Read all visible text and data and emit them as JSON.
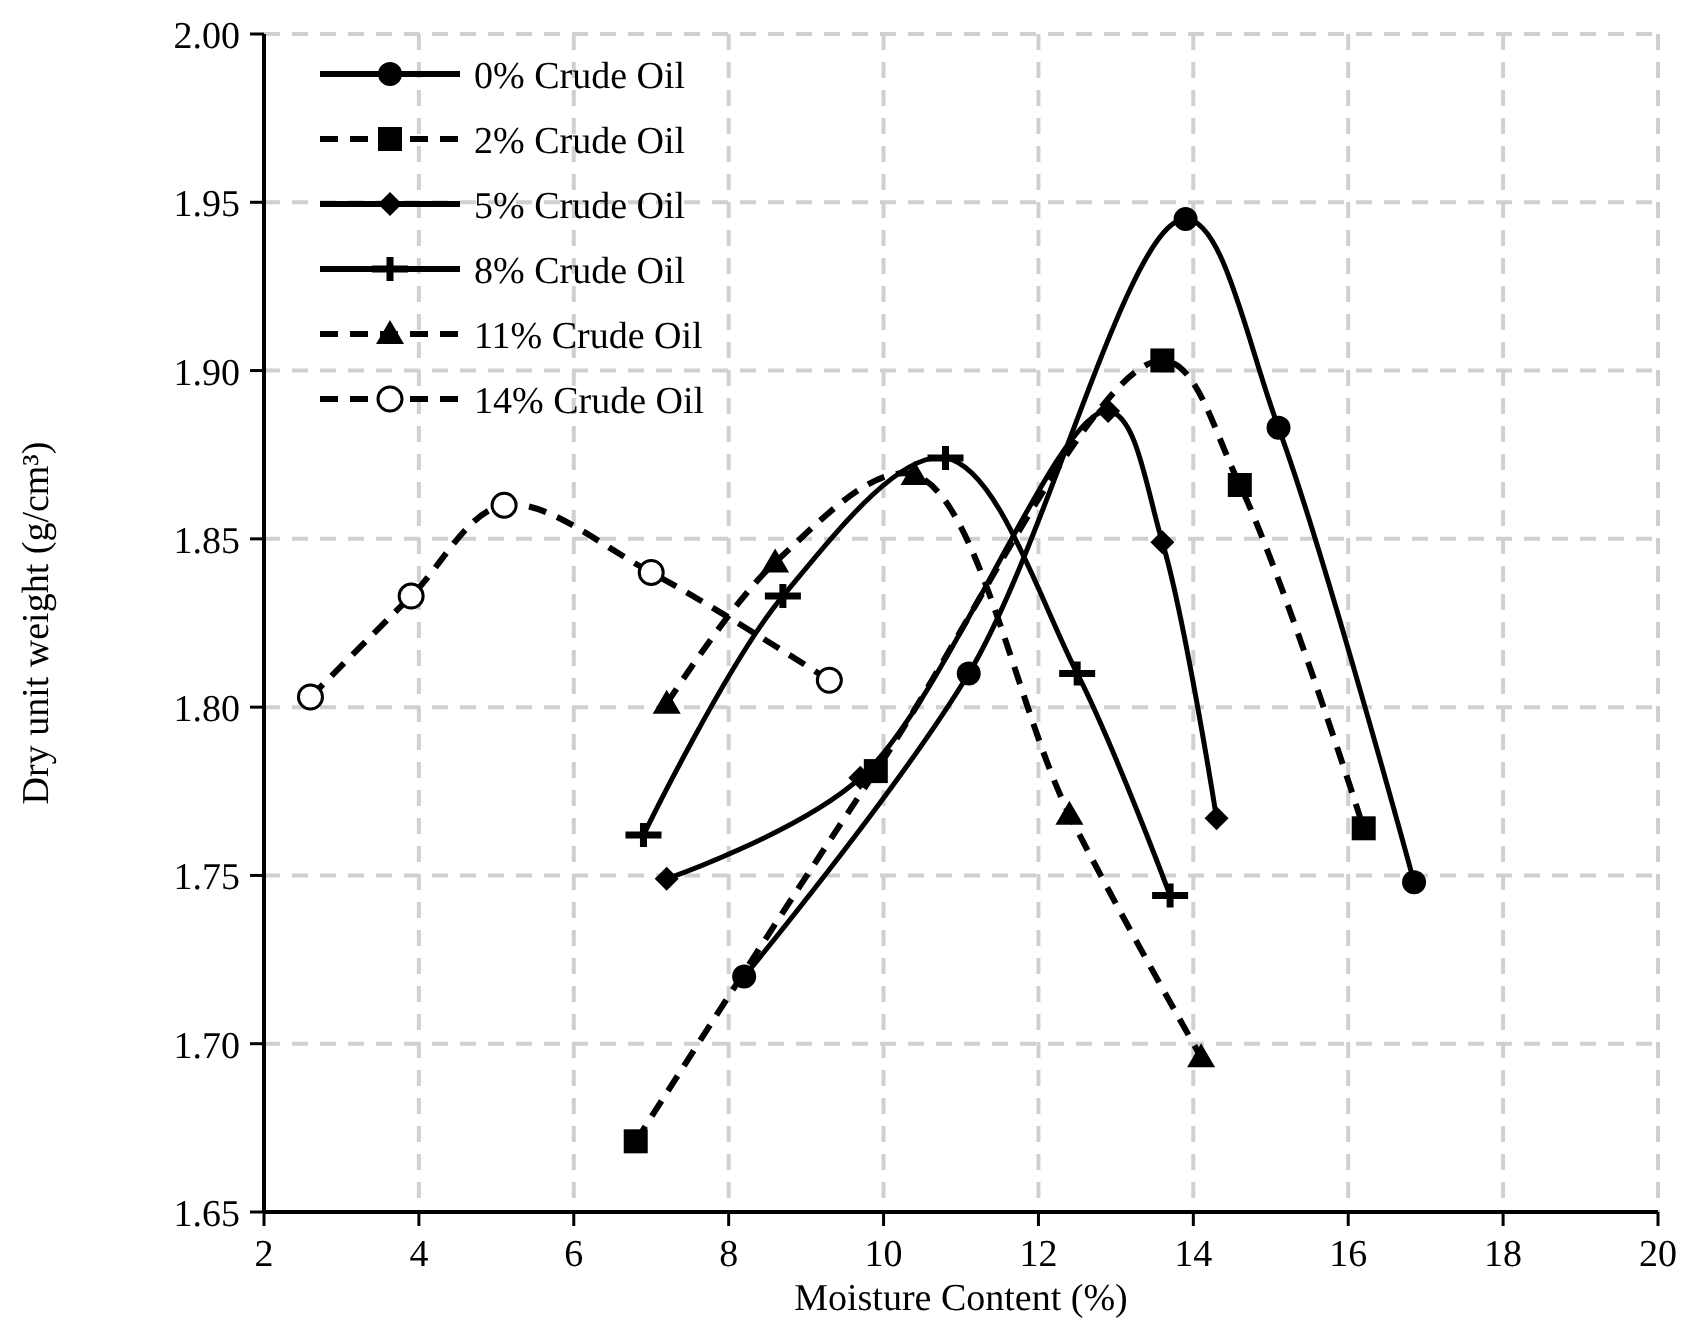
{
  "chart_data": {
    "type": "line",
    "xlabel": "Moisture Content (%)",
    "ylabel": "Dry unit weight (g/cm³)",
    "xlim": [
      2,
      20
    ],
    "xticks": [
      2,
      4,
      6,
      8,
      10,
      12,
      14,
      16,
      18,
      20
    ],
    "ylim": [
      1.65,
      2.0
    ],
    "yticks": [
      {
        "value": 1.65,
        "label": "1.65"
      },
      {
        "value": 1.7,
        "label": "1.70"
      },
      {
        "value": 1.75,
        "label": "1.75"
      },
      {
        "value": 1.8,
        "label": "1.80"
      },
      {
        "value": 1.85,
        "label": "1.85"
      },
      {
        "value": 1.9,
        "label": "1.90"
      },
      {
        "value": 1.95,
        "label": "1.95"
      },
      {
        "value": 2.0,
        "label": "2.00"
      }
    ],
    "grid": true,
    "legend": "top left",
    "series": [
      {
        "name": "0% Crude Oil",
        "color": "#000000",
        "marker": "circle",
        "line_style": "solid",
        "x": [
          8.2,
          11.1,
          13.9,
          15.1,
          16.85
        ],
        "values": [
          1.72,
          1.81,
          1.945,
          1.883,
          1.748
        ]
      },
      {
        "name": "2% Crude Oil",
        "color": "#000000",
        "marker": "square",
        "line_style": "dashed",
        "x": [
          6.8,
          9.9,
          13.6,
          14.6,
          16.2
        ],
        "values": [
          1.671,
          1.781,
          1.903,
          1.866,
          1.764
        ]
      },
      {
        "name": "5% Crude Oil",
        "color": "#000000",
        "marker": "diamond",
        "line_style": "solid",
        "x": [
          7.2,
          9.7,
          12.9,
          13.6,
          14.3
        ],
        "values": [
          1.749,
          1.779,
          1.888,
          1.849,
          1.767
        ]
      },
      {
        "name": "8% Crude Oil",
        "color": "#000000",
        "marker": "cross",
        "line_style": "solid",
        "x": [
          6.9,
          8.7,
          10.8,
          12.5,
          13.7
        ],
        "values": [
          1.762,
          1.833,
          1.874,
          1.81,
          1.744
        ]
      },
      {
        "name": "11% Crude Oil",
        "color": "#000000",
        "marker": "triangle",
        "line_style": "dashed",
        "x": [
          7.2,
          8.6,
          10.4,
          12.4,
          14.1
        ],
        "values": [
          1.801,
          1.843,
          1.869,
          1.768,
          1.696
        ]
      },
      {
        "name": "14% Crude Oil",
        "color": "#000000",
        "marker": "open_circle",
        "line_style": "dashed",
        "x": [
          2.6,
          3.9,
          5.1,
          7.0,
          9.3
        ],
        "values": [
          1.803,
          1.833,
          1.86,
          1.84,
          1.808
        ]
      }
    ]
  }
}
